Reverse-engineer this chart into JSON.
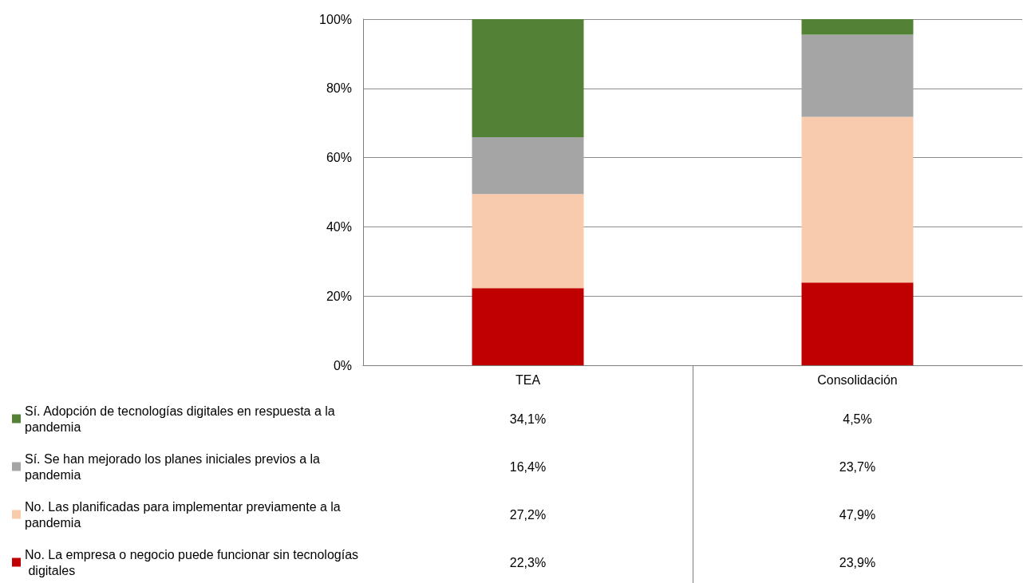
{
  "chart_data": {
    "type": "bar",
    "stacked": true,
    "categories": [
      "TEA",
      "Consolidación"
    ],
    "series": [
      {
        "name": "No. La empresa o negocio puede funcionar sin tecnologías digitales",
        "color": "#c00000",
        "values": [
          22.3,
          23.9
        ],
        "value_labels": [
          "22,3%",
          "23,9%"
        ]
      },
      {
        "name": "No. Las planificadas para implementar previamente a la pandemia",
        "color": "#f8cbad",
        "values": [
          27.2,
          47.9
        ],
        "value_labels": [
          "27,2%",
          "47,9%"
        ]
      },
      {
        "name": "Sí. Se han mejorado los planes iniciales previos a la pandemia",
        "color": "#a5a5a5",
        "values": [
          16.4,
          23.7
        ],
        "value_labels": [
          "16,4%",
          "23,7%"
        ]
      },
      {
        "name": "Sí. Adopción de tecnologías digitales en respuesta a la pandemia",
        "color": "#538135",
        "values": [
          34.1,
          4.5
        ],
        "value_labels": [
          "34,1%",
          "4,5%"
        ]
      }
    ],
    "ylim": [
      0,
      100
    ],
    "yticks": [
      {
        "value": 0,
        "label": "0%"
      },
      {
        "value": 20,
        "label": "20%"
      },
      {
        "value": 40,
        "label": "40%"
      },
      {
        "value": 60,
        "label": "60%"
      },
      {
        "value": 80,
        "label": "80%"
      },
      {
        "value": 100,
        "label": "100%"
      }
    ],
    "grid": "y",
    "legend": "bottom left"
  }
}
